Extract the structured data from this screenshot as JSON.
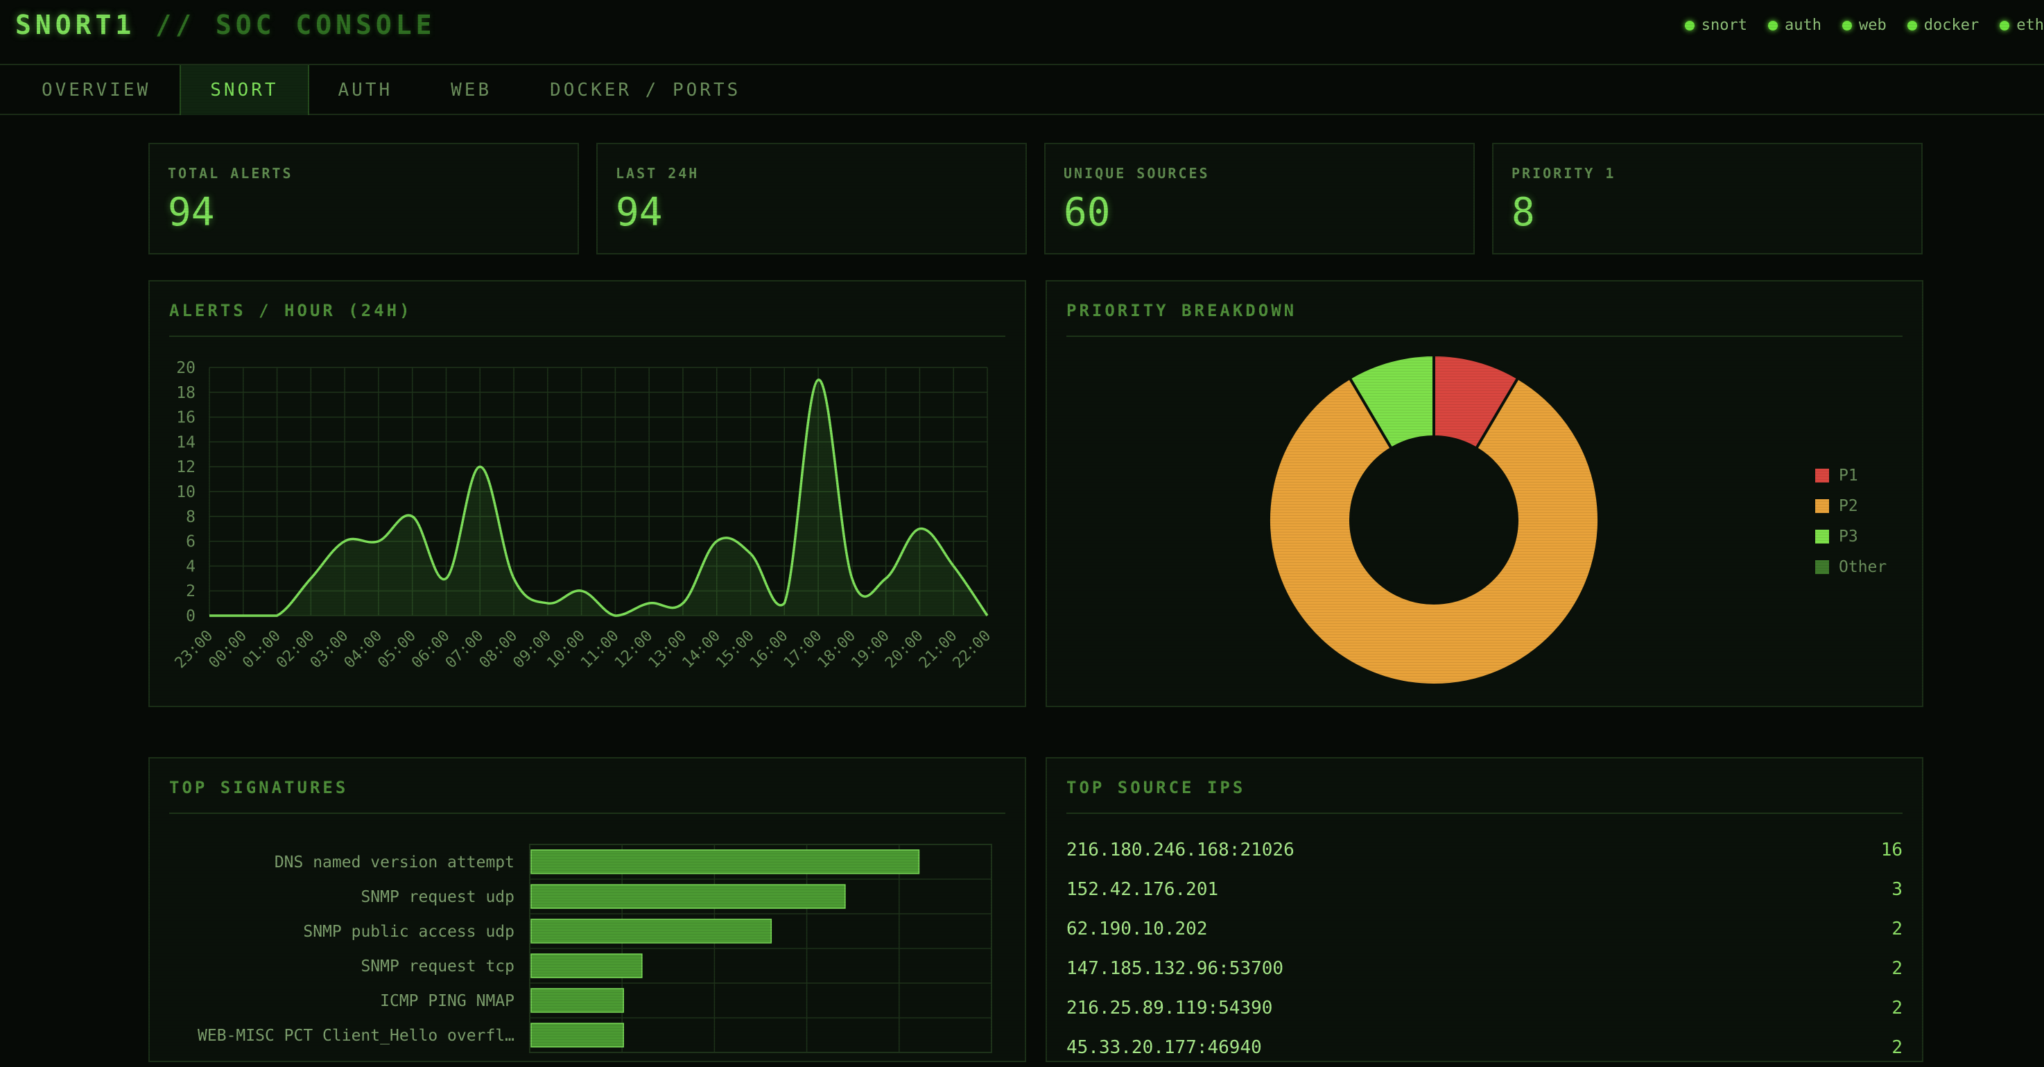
{
  "header": {
    "title_main": "SNORT1",
    "title_sep": "//",
    "title_sub": "SOC CONSOLE",
    "status": [
      {
        "label": "snort",
        "icon": "status-dot-icon"
      },
      {
        "label": "auth",
        "icon": "status-dot-icon"
      },
      {
        "label": "web",
        "icon": "status-dot-icon"
      },
      {
        "label": "docker",
        "icon": "status-dot-icon"
      },
      {
        "label": "eth",
        "icon": "status-dot-icon"
      }
    ]
  },
  "tabs": [
    {
      "label": "OVERVIEW",
      "active": false
    },
    {
      "label": "SNORT",
      "active": true
    },
    {
      "label": "AUTH",
      "active": false
    },
    {
      "label": "WEB",
      "active": false
    },
    {
      "label": "DOCKER / PORTS",
      "active": false
    }
  ],
  "kpis": [
    {
      "label": "TOTAL ALERTS",
      "value": "94"
    },
    {
      "label": "LAST 24H",
      "value": "94"
    },
    {
      "label": "UNIQUE SOURCES",
      "value": "60"
    },
    {
      "label": "PRIORITY 1",
      "value": "8"
    }
  ],
  "panels": {
    "alerts_title": "ALERTS / HOUR (24H)",
    "priority_title": "PRIORITY BREAKDOWN",
    "signatures_title": "TOP SIGNATURES",
    "sources_title": "TOP SOURCE IPS"
  },
  "colors": {
    "accent": "#7ee05a",
    "p1": "#d9463f",
    "p2": "#e8a23a",
    "p3": "#7ee04a",
    "other": "#3f7a2c"
  },
  "chart_data": [
    {
      "type": "line",
      "title": "ALERTS / HOUR (24H)",
      "x": [
        "23:00",
        "00:00",
        "01:00",
        "02:00",
        "03:00",
        "04:00",
        "05:00",
        "06:00",
        "07:00",
        "08:00",
        "09:00",
        "10:00",
        "11:00",
        "12:00",
        "13:00",
        "14:00",
        "15:00",
        "16:00",
        "17:00",
        "18:00",
        "19:00",
        "20:00",
        "21:00",
        "22:00"
      ],
      "values": [
        0,
        0,
        0,
        3,
        6,
        6,
        8,
        3,
        12,
        3,
        1,
        2,
        0,
        1,
        1,
        6,
        5,
        1,
        19,
        3,
        3,
        7,
        4,
        0
      ],
      "ylim": [
        0,
        20
      ],
      "yticks": [
        0,
        2,
        4,
        6,
        8,
        10,
        12,
        14,
        16,
        18,
        20
      ],
      "grid": true
    },
    {
      "type": "pie",
      "title": "PRIORITY BREAKDOWN",
      "labels": [
        "P1",
        "P2",
        "P3",
        "Other"
      ],
      "values": [
        8,
        78,
        8,
        0
      ],
      "donut": true,
      "legend": "right"
    },
    {
      "type": "bar",
      "orientation": "horizontal",
      "title": "TOP SIGNATURES",
      "categories": [
        "DNS named version attempt",
        "SNMP request udp",
        "SNMP public access udp",
        "SNMP request tcp",
        "ICMP PING NMAP",
        "WEB-MISC PCT Client_Hello overfl…"
      ],
      "values": [
        21,
        17,
        13,
        6,
        5,
        5
      ],
      "xlim": [
        0,
        25
      ]
    },
    {
      "type": "table",
      "title": "TOP SOURCE IPS",
      "rows": [
        {
          "ip": "216.180.246.168:21026",
          "count": "16"
        },
        {
          "ip": "152.42.176.201",
          "count": "3"
        },
        {
          "ip": "62.190.10.202",
          "count": "2"
        },
        {
          "ip": "147.185.132.96:53700",
          "count": "2"
        },
        {
          "ip": "216.25.89.119:54390",
          "count": "2"
        },
        {
          "ip": "45.33.20.177:46940",
          "count": "2"
        }
      ]
    }
  ]
}
